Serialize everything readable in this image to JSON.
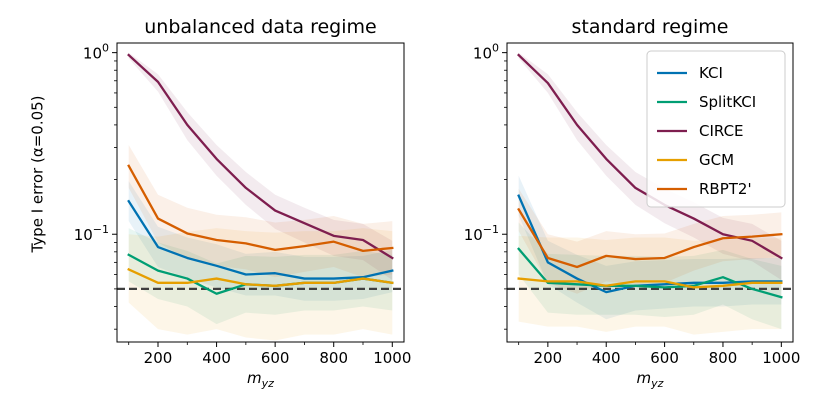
{
  "chart_data": [
    {
      "type": "line",
      "title": "unbalanced data regime",
      "xlabel_base": "m",
      "xlabel_sub": "yz",
      "ylabel": "Type I error (α=0.05)",
      "yscale": "log",
      "ylim": [
        0.0255,
        1.13
      ],
      "xlim": [
        60,
        1040
      ],
      "x": [
        100,
        200,
        300,
        400,
        500,
        600,
        700,
        800,
        900,
        1000
      ],
      "xticks": [
        200,
        400,
        600,
        800,
        1000
      ],
      "xtick_labels": [
        "200",
        "400",
        "600",
        "800",
        "1000"
      ],
      "yticks": [
        0.1,
        1
      ],
      "ytick_labels": [
        {
          "base": "10",
          "exp": "−1"
        },
        {
          "base": "10",
          "exp": "0"
        }
      ],
      "hline": 0.05,
      "series": [
        {
          "name": "KCI",
          "color": "#0072b2",
          "values": [
            0.152,
            0.085,
            0.074,
            0.067,
            0.06,
            0.061,
            0.057,
            0.057,
            0.058,
            0.063
          ],
          "lower": [
            0.118,
            0.066,
            0.057,
            0.051,
            0.046,
            0.046,
            0.043,
            0.043,
            0.044,
            0.048
          ],
          "upper": [
            0.196,
            0.11,
            0.096,
            0.088,
            0.078,
            0.08,
            0.075,
            0.075,
            0.076,
            0.082
          ]
        },
        {
          "name": "SplitKCI",
          "color": "#009e73",
          "values": [
            0.077,
            0.063,
            0.057,
            0.047,
            0.053,
            0.052,
            0.054,
            0.054,
            0.057,
            0.054
          ],
          "lower": [
            0.055,
            0.044,
            0.04,
            0.032,
            0.037,
            0.036,
            0.038,
            0.038,
            0.04,
            0.038
          ],
          "upper": [
            0.108,
            0.09,
            0.081,
            0.069,
            0.076,
            0.075,
            0.077,
            0.077,
            0.081,
            0.077
          ]
        },
        {
          "name": "CIRCE",
          "color": "#7e1e4f",
          "values": [
            0.97,
            0.69,
            0.4,
            0.26,
            0.18,
            0.135,
            0.115,
            0.098,
            0.093,
            0.074
          ],
          "lower": [
            0.93,
            0.61,
            0.33,
            0.21,
            0.145,
            0.107,
            0.09,
            0.076,
            0.072,
            0.056
          ],
          "upper": [
            1.0,
            0.76,
            0.47,
            0.31,
            0.22,
            0.165,
            0.14,
            0.12,
            0.114,
            0.092
          ]
        },
        {
          "name": "GCM",
          "color": "#e69f00",
          "values": [
            0.064,
            0.054,
            0.054,
            0.057,
            0.053,
            0.052,
            0.054,
            0.054,
            0.057,
            0.054
          ],
          "lower": [
            0.042,
            0.03,
            0.028,
            0.03,
            0.027,
            0.026,
            0.028,
            0.028,
            0.03,
            0.028
          ],
          "upper": [
            0.1,
            0.097,
            0.103,
            0.108,
            0.104,
            0.102,
            0.104,
            0.104,
            0.108,
            0.104
          ]
        },
        {
          "name": "RBPT2'",
          "color": "#d55e00",
          "values": [
            0.238,
            0.122,
            0.101,
            0.093,
            0.089,
            0.082,
            0.086,
            0.091,
            0.081,
            0.084
          ],
          "lower": [
            0.18,
            0.09,
            0.073,
            0.067,
            0.064,
            0.058,
            0.062,
            0.066,
            0.058,
            0.06
          ],
          "upper": [
            0.31,
            0.165,
            0.14,
            0.128,
            0.124,
            0.116,
            0.12,
            0.126,
            0.114,
            0.118
          ]
        }
      ]
    },
    {
      "type": "line",
      "title": "standard regime",
      "xlabel_base": "m",
      "xlabel_sub": "yz",
      "yscale": "log",
      "ylim": [
        0.0255,
        1.13
      ],
      "xlim": [
        60,
        1040
      ],
      "x": [
        100,
        200,
        300,
        400,
        500,
        600,
        700,
        800,
        900,
        1000
      ],
      "xticks": [
        200,
        400,
        600,
        800,
        1000
      ],
      "xtick_labels": [
        "200",
        "400",
        "600",
        "800",
        "1000"
      ],
      "yticks": [
        0.1,
        1
      ],
      "ytick_labels": [
        {
          "base": "10",
          "exp": "−1"
        },
        {
          "base": "10",
          "exp": "0"
        }
      ],
      "hline": 0.05,
      "legend_position": "top-right",
      "series": [
        {
          "name": "KCI",
          "color": "#0072b2",
          "values": [
            0.163,
            0.07,
            0.057,
            0.048,
            0.052,
            0.053,
            0.054,
            0.054,
            0.055,
            0.055
          ],
          "lower": [
            0.127,
            0.053,
            0.042,
            0.034,
            0.038,
            0.039,
            0.04,
            0.04,
            0.041,
            0.041
          ],
          "upper": [
            0.21,
            0.092,
            0.077,
            0.067,
            0.071,
            0.072,
            0.073,
            0.073,
            0.074,
            0.074
          ]
        },
        {
          "name": "SplitKCI",
          "color": "#009e73",
          "values": [
            0.083,
            0.054,
            0.053,
            0.052,
            0.052,
            0.051,
            0.052,
            0.058,
            0.05,
            0.045
          ],
          "lower": [
            0.06,
            0.037,
            0.036,
            0.036,
            0.036,
            0.035,
            0.036,
            0.041,
            0.034,
            0.03
          ],
          "upper": [
            0.116,
            0.078,
            0.077,
            0.076,
            0.076,
            0.075,
            0.076,
            0.082,
            0.073,
            0.067
          ]
        },
        {
          "name": "CIRCE",
          "color": "#7e1e4f",
          "values": [
            0.97,
            0.68,
            0.4,
            0.26,
            0.18,
            0.145,
            0.122,
            0.1,
            0.092,
            0.074
          ],
          "lower": [
            0.93,
            0.6,
            0.33,
            0.21,
            0.145,
            0.115,
            0.096,
            0.078,
            0.071,
            0.056
          ],
          "upper": [
            1.0,
            0.76,
            0.47,
            0.31,
            0.22,
            0.178,
            0.15,
            0.123,
            0.114,
            0.092
          ]
        },
        {
          "name": "GCM",
          "color": "#e69f00",
          "values": [
            0.057,
            0.055,
            0.055,
            0.052,
            0.055,
            0.055,
            0.051,
            0.052,
            0.054,
            0.054
          ],
          "lower": [
            0.033,
            0.031,
            0.031,
            0.029,
            0.031,
            0.031,
            0.028,
            0.029,
            0.03,
            0.03
          ],
          "upper": [
            0.098,
            0.096,
            0.096,
            0.093,
            0.096,
            0.096,
            0.092,
            0.093,
            0.095,
            0.095
          ]
        },
        {
          "name": "RBPT2'",
          "color": "#d55e00",
          "values": [
            0.137,
            0.074,
            0.066,
            0.076,
            0.073,
            0.074,
            0.085,
            0.095,
            0.097,
            0.1
          ],
          "lower": [
            0.104,
            0.054,
            0.047,
            0.055,
            0.053,
            0.054,
            0.063,
            0.071,
            0.073,
            0.075
          ],
          "upper": [
            0.178,
            0.1,
            0.091,
            0.104,
            0.1,
            0.101,
            0.114,
            0.126,
            0.128,
            0.132
          ]
        }
      ]
    }
  ]
}
